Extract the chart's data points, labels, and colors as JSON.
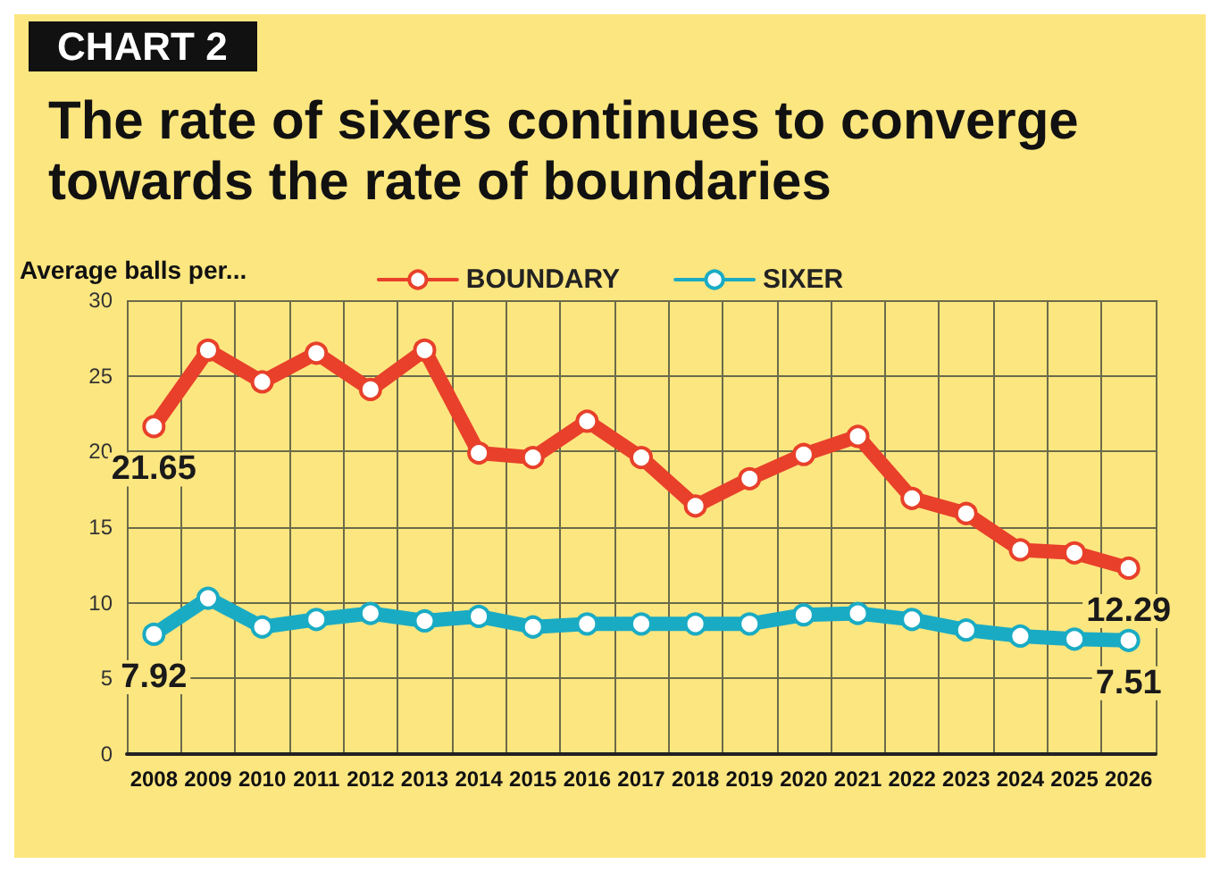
{
  "chart_data": {
    "type": "line",
    "title": "The rate of sixers continues to converge\ntowards the rate of boundaries",
    "ylabel": "Average balls per...",
    "annotations": [
      "CHART 2"
    ],
    "categories": [
      "2008",
      "2009",
      "2010",
      "2011",
      "2012",
      "2013",
      "2014",
      "2015",
      "2016",
      "2017",
      "2018",
      "2019",
      "2020",
      "2021",
      "2022",
      "2023",
      "2024",
      "2025",
      "2026"
    ],
    "series": [
      {
        "name": "BOUNDARY",
        "color": "#e8402a",
        "values": [
          21.65,
          26.7,
          24.6,
          26.5,
          24.1,
          26.7,
          19.9,
          19.6,
          22.0,
          19.6,
          16.4,
          18.2,
          19.8,
          21.0,
          16.9,
          15.9,
          13.5,
          13.3,
          12.29
        ],
        "value_labels": [
          "21.65",
          null,
          null,
          null,
          null,
          null,
          null,
          null,
          null,
          null,
          null,
          null,
          null,
          null,
          null,
          null,
          null,
          null,
          "12.29"
        ]
      },
      {
        "name": "SIXER",
        "color": "#1aabc4",
        "values": [
          7.92,
          10.3,
          8.4,
          8.9,
          9.3,
          8.8,
          9.1,
          8.4,
          8.6,
          8.6,
          8.6,
          8.6,
          9.2,
          9.3,
          8.9,
          8.2,
          7.8,
          7.6,
          7.51
        ],
        "value_labels": [
          "7.92",
          null,
          null,
          null,
          null,
          null,
          null,
          null,
          null,
          null,
          null,
          null,
          null,
          null,
          null,
          null,
          null,
          null,
          "7.51"
        ]
      }
    ],
    "ylim": [
      0,
      30
    ],
    "yticks": [
      0,
      5,
      10,
      15,
      20,
      25,
      30
    ],
    "grid": true,
    "legend": "top",
    "marker": "circle",
    "line_style": "solid"
  }
}
